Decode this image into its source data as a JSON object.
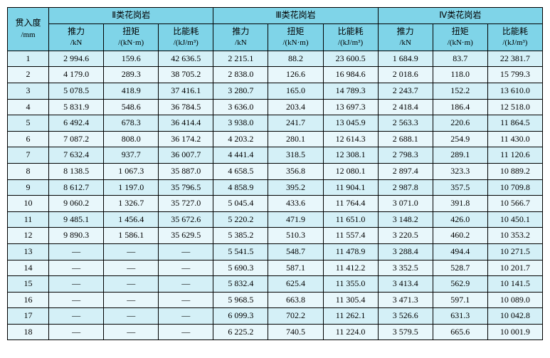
{
  "table": {
    "type": "table",
    "background_color": "#ffffff",
    "header_bg": "#7fd4e8",
    "row_odd_bg": "#d4f0f7",
    "row_even_bg": "#e8f7fb",
    "border_color": "#000000",
    "font_family": "SimSun",
    "cell_fontsize": 12,
    "header": {
      "index_label_top": "贯入度",
      "index_label_bot": "/mm",
      "groups": [
        "Ⅱ类花岗岩",
        "Ⅲ类花岗岩",
        "Ⅳ类花岗岩"
      ],
      "sub_labels_top": [
        "推力",
        "扭矩",
        "比能耗"
      ],
      "sub_labels_bot": [
        "/kN",
        "/(kN·m)",
        "/(kJ/m³)"
      ]
    },
    "rows": [
      {
        "i": "1",
        "v": [
          "2 994.6",
          "159.6",
          "42 636.5",
          "2 215.1",
          "88.2",
          "23 600.5",
          "1 684.9",
          "83.7",
          "22 381.7"
        ]
      },
      {
        "i": "2",
        "v": [
          "4 179.0",
          "289.3",
          "38 705.2",
          "2 838.0",
          "126.6",
          "16 984.6",
          "2 018.6",
          "118.0",
          "15 799.3"
        ]
      },
      {
        "i": "3",
        "v": [
          "5 078.5",
          "418.9",
          "37 416.1",
          "3 280.7",
          "165.0",
          "14 789.3",
          "2 243.7",
          "152.2",
          "13 610.0"
        ]
      },
      {
        "i": "4",
        "v": [
          "5 831.9",
          "548.6",
          "36 784.5",
          "3 636.0",
          "203.4",
          "13 697.3",
          "2 418.4",
          "186.4",
          "12 518.0"
        ]
      },
      {
        "i": "5",
        "v": [
          "6 492.4",
          "678.3",
          "36 414.4",
          "3 938.0",
          "241.7",
          "13 045.9",
          "2 563.3",
          "220.6",
          "11 864.5"
        ]
      },
      {
        "i": "6",
        "v": [
          "7 087.2",
          "808.0",
          "36 174.2",
          "4 203.2",
          "280.1",
          "12 614.3",
          "2 688.1",
          "254.9",
          "11 430.0"
        ]
      },
      {
        "i": "7",
        "v": [
          "7 632.4",
          "937.7",
          "36 007.7",
          "4 441.4",
          "318.5",
          "12 308.1",
          "2 798.3",
          "289.1",
          "11 120.6"
        ]
      },
      {
        "i": "8",
        "v": [
          "8 138.5",
          "1 067.3",
          "35 887.0",
          "4 658.5",
          "356.8",
          "12 080.1",
          "2 897.4",
          "323.3",
          "10 889.2"
        ]
      },
      {
        "i": "9",
        "v": [
          "8 612.7",
          "1 197.0",
          "35 796.5",
          "4 858.9",
          "395.2",
          "11 904.1",
          "2 987.8",
          "357.5",
          "10 709.8"
        ]
      },
      {
        "i": "10",
        "v": [
          "9 060.2",
          "1 326.7",
          "35 727.0",
          "5 045.4",
          "433.6",
          "11 764.4",
          "3 071.0",
          "391.8",
          "10 566.7"
        ]
      },
      {
        "i": "11",
        "v": [
          "9 485.1",
          "1 456.4",
          "35 672.6",
          "5 220.2",
          "471.9",
          "11 651.0",
          "3 148.2",
          "426.0",
          "10 450.1"
        ]
      },
      {
        "i": "12",
        "v": [
          "9 890.3",
          "1 586.1",
          "35 629.5",
          "5 385.2",
          "510.3",
          "11 557.4",
          "3 220.5",
          "460.2",
          "10 353.2"
        ]
      },
      {
        "i": "13",
        "v": [
          "—",
          "—",
          "—",
          "5 541.5",
          "548.7",
          "11 478.9",
          "3 288.4",
          "494.4",
          "10 271.5"
        ]
      },
      {
        "i": "14",
        "v": [
          "—",
          "—",
          "—",
          "5 690.3",
          "587.1",
          "11 412.2",
          "3 352.5",
          "528.7",
          "10 201.7"
        ]
      },
      {
        "i": "15",
        "v": [
          "—",
          "—",
          "—",
          "5 832.4",
          "625.4",
          "11 355.0",
          "3 413.4",
          "562.9",
          "10 141.5"
        ]
      },
      {
        "i": "16",
        "v": [
          "—",
          "—",
          "—",
          "5 968.5",
          "663.8",
          "11 305.4",
          "3 471.3",
          "597.1",
          "10 089.0"
        ]
      },
      {
        "i": "17",
        "v": [
          "—",
          "—",
          "—",
          "6 099.3",
          "702.2",
          "11 262.1",
          "3 526.6",
          "631.3",
          "10 042.8"
        ]
      },
      {
        "i": "18",
        "v": [
          "—",
          "—",
          "—",
          "6 225.2",
          "740.5",
          "11 224.0",
          "3 579.5",
          "665.6",
          "10 001.9"
        ]
      }
    ]
  }
}
